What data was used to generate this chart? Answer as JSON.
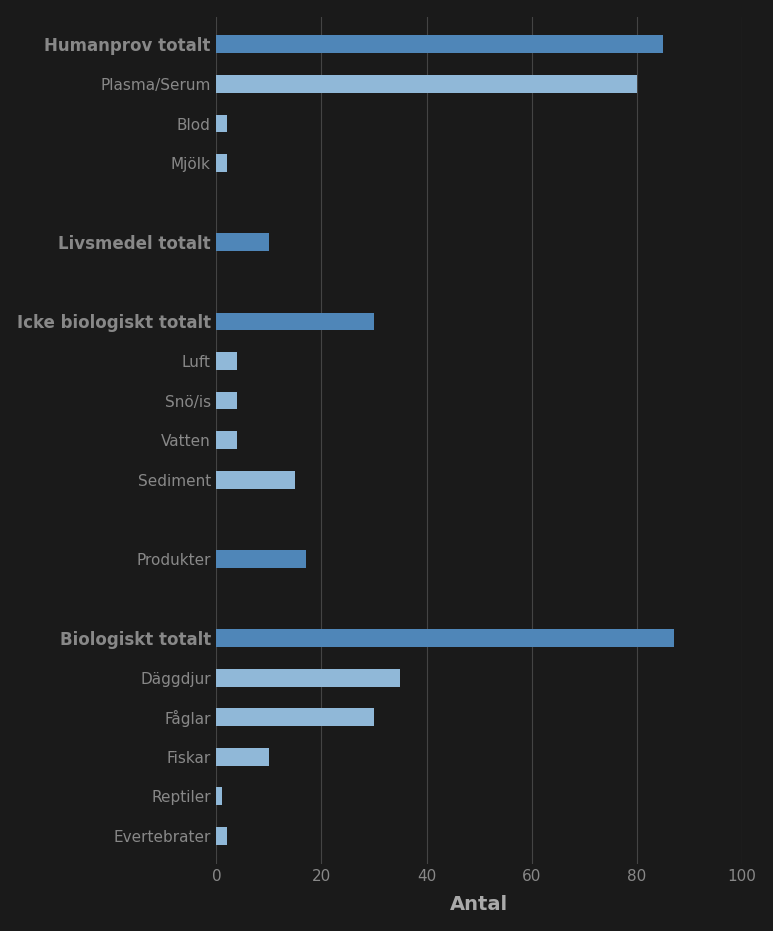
{
  "categories": [
    "Humanprov totalt",
    "Plasma/Serum",
    "Blod",
    "Mjölk",
    "",
    "Livsmedel totalt",
    "",
    "Icke biologiskt totalt",
    "Luft",
    "Snö/is",
    "Vatten",
    "Sediment",
    "",
    "Produkter",
    "",
    "Biologiskt totalt",
    "Däggdjur",
    "Fåglar",
    "Fiskar",
    "Reptiler",
    "Evertebrater"
  ],
  "values": [
    85,
    80,
    2,
    2,
    0,
    10,
    0,
    30,
    4,
    4,
    4,
    15,
    0,
    17,
    0,
    87,
    35,
    30,
    10,
    1,
    2
  ],
  "bar_colors": [
    "#4f86b8",
    "#90b8d8",
    "#90b8d8",
    "#90b8d8",
    null,
    "#4f86b8",
    null,
    "#4f86b8",
    "#90b8d8",
    "#90b8d8",
    "#90b8d8",
    "#90b8d8",
    null,
    "#4f86b8",
    null,
    "#4f86b8",
    "#90b8d8",
    "#90b8d8",
    "#90b8d8",
    "#90b8d8",
    "#90b8d8"
  ],
  "bold_categories": [
    "Humanprov totalt",
    "Livsmedel totalt",
    "Icke biologiskt totalt",
    "Biologiskt totalt"
  ],
  "xlabel": "Antal",
  "xlim": [
    0,
    100
  ],
  "xticks": [
    0,
    20,
    40,
    60,
    80,
    100
  ],
  "background_color": "#1a1a1a",
  "text_color": "#888888",
  "bold_text_color": "#aaaaaa",
  "grid_color": "#444444",
  "label_fontsize": 11,
  "tick_fontsize": 11,
  "xlabel_fontsize": 14,
  "bar_height": 0.45
}
